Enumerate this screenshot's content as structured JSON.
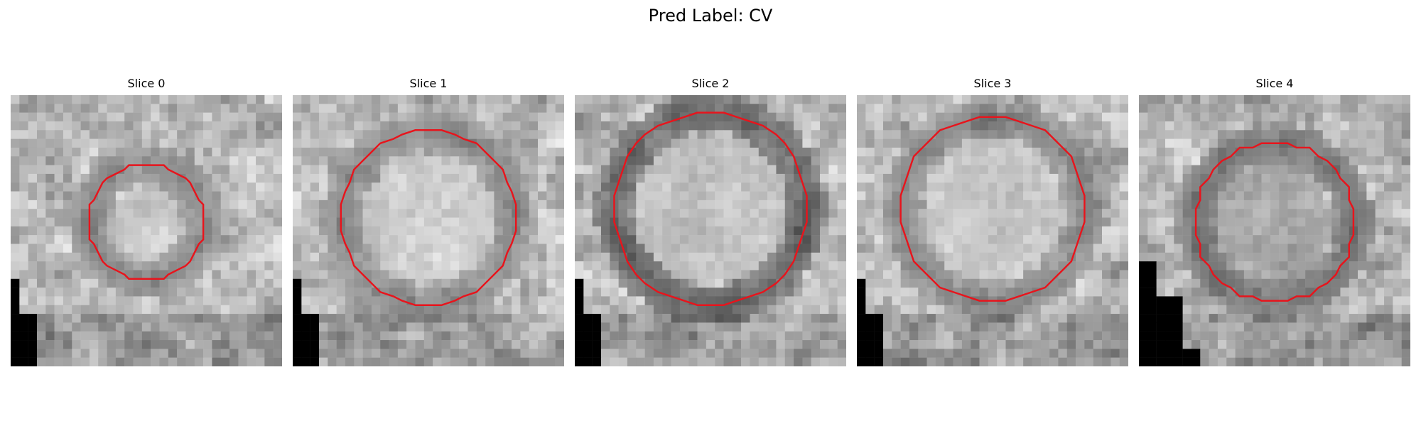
{
  "figure": {
    "title": "Pred Label: CV"
  },
  "panels": [
    {
      "title": "Slice 0",
      "outline_color": "#e8141c",
      "seed": 11,
      "dark_block": "left",
      "ring": 0.55,
      "core": 0.85
    },
    {
      "title": "Slice 1",
      "outline_color": "#e8141c",
      "seed": 23,
      "dark_block": "left",
      "ring": 0.6,
      "core": 0.9
    },
    {
      "title": "Slice 2",
      "outline_color": "#e8141c",
      "seed": 37,
      "dark_block": "left",
      "ring": 0.3,
      "core": 0.8
    },
    {
      "title": "Slice 3",
      "outline_color": "#e8141c",
      "seed": 41,
      "dark_block": "left",
      "ring": 0.55,
      "core": 0.85
    },
    {
      "title": "Slice 4",
      "outline_color": "#e8141c",
      "seed": 53,
      "dark_block": "left-large",
      "ring": 0.4,
      "core": 0.6
    }
  ]
}
